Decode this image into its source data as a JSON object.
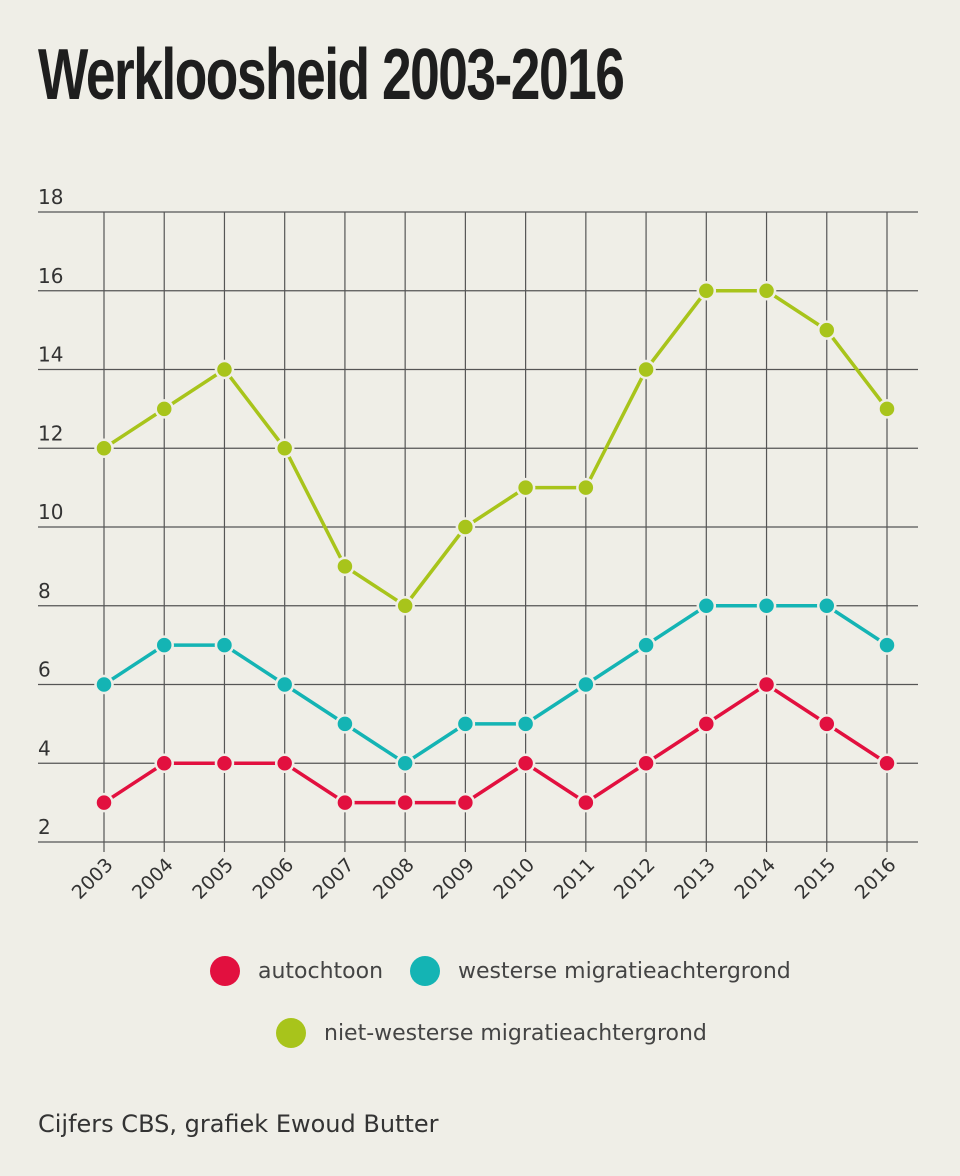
{
  "chart_data": {
    "type": "line",
    "title": "Werkloosheid 2003-2016",
    "x": [
      "2003",
      "2004",
      "2005",
      "2006",
      "2007",
      "2008",
      "2009",
      "2010",
      "2011",
      "2012",
      "2013",
      "2014",
      "2015",
      "2016"
    ],
    "y_ticks": [
      "2",
      "4",
      "6",
      "8",
      "10",
      "12",
      "14",
      "16",
      "18"
    ],
    "ylim": [
      2,
      18
    ],
    "grid": true,
    "legend_position": "bottom",
    "series": [
      {
        "name": "autochtoon",
        "color": "#e2103f",
        "values": [
          3,
          4,
          4,
          4,
          3,
          3,
          3,
          4,
          3,
          4,
          5,
          6,
          5,
          4
        ]
      },
      {
        "name": "westerse migratieachtergrond",
        "color": "#14b4b4",
        "values": [
          6,
          7,
          7,
          6,
          5,
          4,
          5,
          5,
          6,
          7,
          8,
          8,
          8,
          7
        ]
      },
      {
        "name": "niet-westerse migratieachtergrond",
        "color": "#a8c41b",
        "values": [
          12,
          13,
          14,
          12,
          9,
          8,
          10,
          11,
          11,
          14,
          16,
          16,
          15,
          13
        ]
      }
    ]
  },
  "source": "Cijfers CBS, grafiek Ewoud Butter"
}
